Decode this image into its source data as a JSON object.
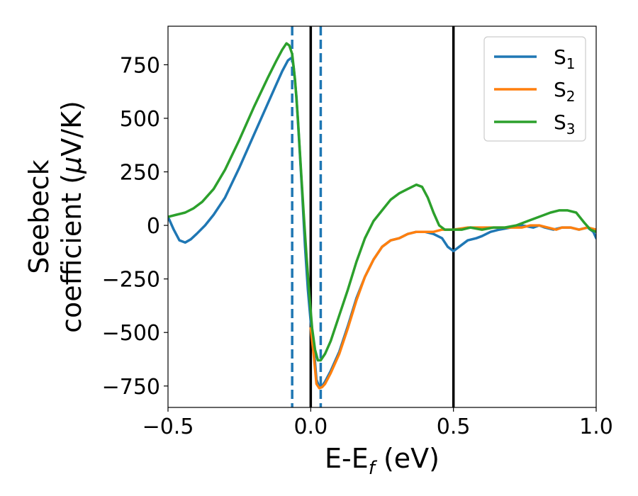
{
  "chart_data": {
    "type": "line",
    "xlabel": "E-E",
    "xlabel_sub": "f",
    "xlabel_unit": " (eV)",
    "ylabel_line1": "Seebeck",
    "ylabel_line2": "coefficient  (",
    "ylabel_mu": "μ",
    "ylabel_unit": "V/K)",
    "xlim": [
      -0.5,
      1.0
    ],
    "ylim": [
      -850,
      930
    ],
    "xticks": [
      -0.5,
      0.0,
      0.5,
      1.0
    ],
    "xtick_labels": [
      "−0.5",
      "0.0",
      "0.5",
      "1.0"
    ],
    "yticks": [
      -750,
      -500,
      -250,
      0,
      250,
      500,
      750
    ],
    "ytick_labels": [
      "−750",
      "−500",
      "−250",
      "0",
      "250",
      "500",
      "750"
    ],
    "grid": false,
    "legend_position": "top-right",
    "vlines": [
      {
        "x": -0.065,
        "style": "dashed",
        "color": "#1f77b4"
      },
      {
        "x": 0.035,
        "style": "dashed",
        "color": "#1f77b4"
      },
      {
        "x": 0.0,
        "style": "solid",
        "color": "#000000"
      },
      {
        "x": 0.5,
        "style": "solid",
        "color": "#000000"
      }
    ],
    "series": [
      {
        "name": "S",
        "sub": "1",
        "color": "#1f77b4",
        "points": [
          [
            -0.5,
            40
          ],
          [
            -0.48,
            -20
          ],
          [
            -0.46,
            -70
          ],
          [
            -0.44,
            -80
          ],
          [
            -0.42,
            -65
          ],
          [
            -0.4,
            -40
          ],
          [
            -0.37,
            0
          ],
          [
            -0.34,
            50
          ],
          [
            -0.3,
            130
          ],
          [
            -0.25,
            270
          ],
          [
            -0.2,
            420
          ],
          [
            -0.15,
            570
          ],
          [
            -0.12,
            660
          ],
          [
            -0.1,
            720
          ],
          [
            -0.08,
            770
          ],
          [
            -0.07,
            780
          ],
          [
            -0.065,
            775
          ],
          [
            -0.06,
            740
          ],
          [
            -0.05,
            600
          ],
          [
            -0.04,
            380
          ],
          [
            -0.03,
            150
          ],
          [
            -0.02,
            -100
          ],
          [
            -0.01,
            -300
          ],
          [
            0.0,
            -450
          ],
          [
            0.01,
            -560
          ],
          [
            0.02,
            -720
          ],
          [
            0.03,
            -755
          ],
          [
            0.04,
            -750
          ],
          [
            0.05,
            -730
          ],
          [
            0.07,
            -680
          ],
          [
            0.1,
            -590
          ],
          [
            0.13,
            -470
          ],
          [
            0.16,
            -340
          ],
          [
            0.19,
            -240
          ],
          [
            0.22,
            -160
          ],
          [
            0.25,
            -100
          ],
          [
            0.28,
            -70
          ],
          [
            0.31,
            -60
          ],
          [
            0.34,
            -40
          ],
          [
            0.37,
            -30
          ],
          [
            0.4,
            -30
          ],
          [
            0.43,
            -40
          ],
          [
            0.46,
            -60
          ],
          [
            0.48,
            -100
          ],
          [
            0.5,
            -120
          ],
          [
            0.52,
            -100
          ],
          [
            0.55,
            -70
          ],
          [
            0.58,
            -60
          ],
          [
            0.6,
            -50
          ],
          [
            0.63,
            -30
          ],
          [
            0.66,
            -20
          ],
          [
            0.7,
            -10
          ],
          [
            0.74,
            0
          ],
          [
            0.78,
            -10
          ],
          [
            0.8,
            0
          ],
          [
            0.82,
            -10
          ],
          [
            0.85,
            -20
          ],
          [
            0.88,
            -10
          ],
          [
            0.91,
            -10
          ],
          [
            0.94,
            -20
          ],
          [
            0.97,
            -10
          ],
          [
            0.99,
            -30
          ],
          [
            1.0,
            -60
          ]
        ]
      },
      {
        "name": "S",
        "sub": "2",
        "color": "#ff7f0e",
        "points": [
          [
            0.0,
            -480
          ],
          [
            0.01,
            -600
          ],
          [
            0.02,
            -740
          ],
          [
            0.03,
            -760
          ],
          [
            0.04,
            -755
          ],
          [
            0.05,
            -740
          ],
          [
            0.07,
            -690
          ],
          [
            0.1,
            -600
          ],
          [
            0.13,
            -480
          ],
          [
            0.16,
            -350
          ],
          [
            0.19,
            -240
          ],
          [
            0.22,
            -160
          ],
          [
            0.25,
            -100
          ],
          [
            0.28,
            -70
          ],
          [
            0.31,
            -60
          ],
          [
            0.34,
            -40
          ],
          [
            0.37,
            -30
          ],
          [
            0.4,
            -30
          ],
          [
            0.43,
            -30
          ],
          [
            0.46,
            -20
          ],
          [
            0.5,
            -20
          ],
          [
            0.55,
            -10
          ],
          [
            0.6,
            -10
          ],
          [
            0.65,
            -10
          ],
          [
            0.7,
            -10
          ],
          [
            0.74,
            -10
          ],
          [
            0.77,
            0
          ],
          [
            0.8,
            0
          ],
          [
            0.83,
            -10
          ],
          [
            0.86,
            -20
          ],
          [
            0.88,
            -10
          ],
          [
            0.91,
            -10
          ],
          [
            0.94,
            -20
          ],
          [
            0.97,
            -10
          ],
          [
            1.0,
            -20
          ]
        ]
      },
      {
        "name": "S",
        "sub": "3",
        "color": "#2ca02c",
        "points": [
          [
            -0.5,
            40
          ],
          [
            -0.47,
            50
          ],
          [
            -0.44,
            60
          ],
          [
            -0.41,
            80
          ],
          [
            -0.38,
            110
          ],
          [
            -0.34,
            170
          ],
          [
            -0.3,
            260
          ],
          [
            -0.25,
            400
          ],
          [
            -0.2,
            550
          ],
          [
            -0.15,
            690
          ],
          [
            -0.12,
            770
          ],
          [
            -0.1,
            820
          ],
          [
            -0.085,
            850
          ],
          [
            -0.075,
            840
          ],
          [
            -0.065,
            800
          ],
          [
            -0.055,
            680
          ],
          [
            -0.045,
            500
          ],
          [
            -0.035,
            280
          ],
          [
            -0.025,
            60
          ],
          [
            -0.015,
            -140
          ],
          [
            -0.005,
            -320
          ],
          [
            0.005,
            -480
          ],
          [
            0.015,
            -580
          ],
          [
            0.025,
            -630
          ],
          [
            0.035,
            -630
          ],
          [
            0.05,
            -600
          ],
          [
            0.07,
            -540
          ],
          [
            0.1,
            -420
          ],
          [
            0.13,
            -300
          ],
          [
            0.16,
            -170
          ],
          [
            0.19,
            -60
          ],
          [
            0.22,
            20
          ],
          [
            0.25,
            70
          ],
          [
            0.28,
            120
          ],
          [
            0.31,
            150
          ],
          [
            0.34,
            170
          ],
          [
            0.37,
            190
          ],
          [
            0.39,
            180
          ],
          [
            0.41,
            130
          ],
          [
            0.43,
            60
          ],
          [
            0.45,
            0
          ],
          [
            0.47,
            -20
          ],
          [
            0.5,
            -20
          ],
          [
            0.53,
            -20
          ],
          [
            0.56,
            -10
          ],
          [
            0.6,
            -20
          ],
          [
            0.64,
            -10
          ],
          [
            0.68,
            -10
          ],
          [
            0.72,
            0
          ],
          [
            0.76,
            20
          ],
          [
            0.8,
            40
          ],
          [
            0.84,
            60
          ],
          [
            0.87,
            70
          ],
          [
            0.9,
            70
          ],
          [
            0.93,
            60
          ],
          [
            0.96,
            10
          ],
          [
            0.98,
            -20
          ],
          [
            1.0,
            -30
          ]
        ]
      }
    ]
  }
}
